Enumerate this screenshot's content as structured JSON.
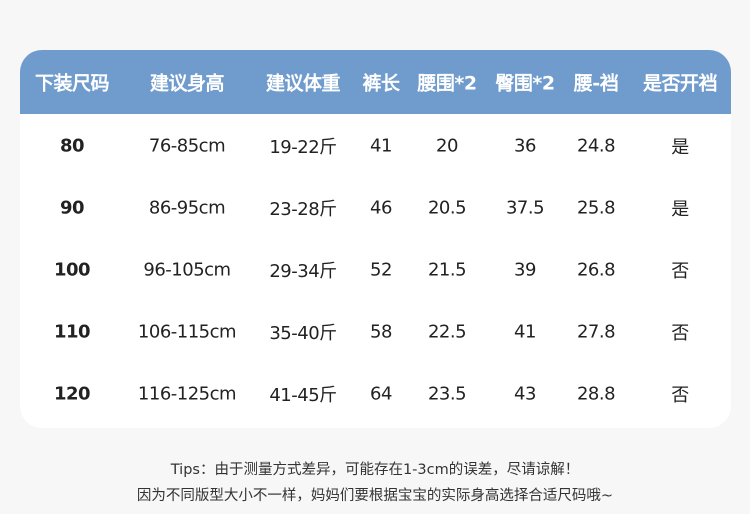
{
  "table": {
    "headers": [
      "下装尺码",
      "建议身高",
      "建议体重",
      "裤长",
      "腰围*2",
      "臀围*2",
      "腰-裆",
      "是否开裆"
    ],
    "rows": [
      [
        "80",
        "76-85cm",
        "19-22斤",
        "41",
        "20",
        "36",
        "24.8",
        "是"
      ],
      [
        "90",
        "86-95cm",
        "23-28斤",
        "46",
        "20.5",
        "37.5",
        "25.8",
        "是"
      ],
      [
        "100",
        "96-105cm",
        "29-34斤",
        "52",
        "21.5",
        "39",
        "26.8",
        "否"
      ],
      [
        "110",
        "106-115cm",
        "35-40斤",
        "58",
        "22.5",
        "41",
        "27.8",
        "否"
      ],
      [
        "120",
        "116-125cm",
        "41-45斤",
        "64",
        "23.5",
        "43",
        "28.8",
        "否"
      ]
    ]
  },
  "tips": {
    "line1": "Tips：由于测量方式差异，可能存在1-3cm的误差，尽请谅解！",
    "line2": "因为不同版型大小不一样，妈妈们要根据宝宝的实际身高选择合适尺码哦~"
  },
  "colors": {
    "header_bg": "#6f9bcd",
    "page_bg": "#f7f7f7"
  }
}
